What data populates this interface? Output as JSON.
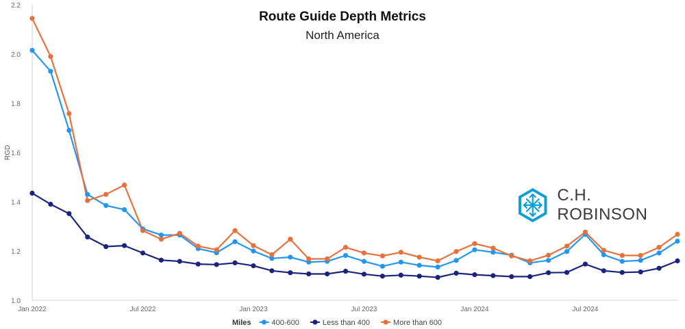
{
  "title": "Route Guide Depth Metrics",
  "subtitle": "North America",
  "brand": {
    "name": "C.H. ROBINSON",
    "icon": "ch-robinson-logo-icon",
    "color": "#0aa0d6"
  },
  "chart_data": {
    "type": "line",
    "ylabel": "RGD",
    "xlabel": "",
    "ylim": [
      1.0,
      2.2
    ],
    "yticks": [
      1.0,
      1.2,
      1.4,
      1.6,
      1.8,
      2.0,
      2.2
    ],
    "x": [
      "2022-01",
      "2022-02",
      "2022-03",
      "2022-04",
      "2022-05",
      "2022-06",
      "2022-07",
      "2022-08",
      "2022-09",
      "2022-10",
      "2022-11",
      "2022-12",
      "2023-01",
      "2023-02",
      "2023-03",
      "2023-04",
      "2023-05",
      "2023-06",
      "2023-07",
      "2023-08",
      "2023-09",
      "2023-10",
      "2023-11",
      "2023-12",
      "2024-01",
      "2024-02",
      "2024-03",
      "2024-04",
      "2024-05",
      "2024-06",
      "2024-07",
      "2024-08",
      "2024-09",
      "2024-10",
      "2024-11",
      "2024-12"
    ],
    "xticks": [
      {
        "x": "2022-01",
        "label": "Jan 2022"
      },
      {
        "x": "2022-07",
        "label": "Jul 2022"
      },
      {
        "x": "2023-01",
        "label": "Jan 2023"
      },
      {
        "x": "2023-07",
        "label": "Jul 2023"
      },
      {
        "x": "2024-01",
        "label": "Jan 2024"
      },
      {
        "x": "2024-07",
        "label": "Jul 2024"
      }
    ],
    "grid": false,
    "legend": {
      "title": "Miles",
      "placement": "bottom"
    },
    "series": [
      {
        "name": "400-600",
        "color": "#2196f3",
        "values": [
          2.015,
          1.93,
          1.69,
          1.43,
          1.385,
          1.368,
          1.29,
          1.265,
          1.265,
          1.21,
          1.193,
          1.238,
          1.2,
          1.17,
          1.175,
          1.155,
          1.158,
          1.182,
          1.158,
          1.138,
          1.155,
          1.142,
          1.135,
          1.162,
          1.205,
          1.195,
          1.183,
          1.152,
          1.162,
          1.198,
          1.268,
          1.185,
          1.158,
          1.162,
          1.192,
          1.24
        ]
      },
      {
        "name": "Less than 400",
        "color": "#1a237e",
        "values": [
          1.435,
          1.39,
          1.352,
          1.257,
          1.218,
          1.222,
          1.192,
          1.163,
          1.158,
          1.147,
          1.145,
          1.152,
          1.14,
          1.12,
          1.112,
          1.107,
          1.107,
          1.118,
          1.106,
          1.098,
          1.102,
          1.098,
          1.093,
          1.11,
          1.104,
          1.1,
          1.096,
          1.096,
          1.112,
          1.113,
          1.147,
          1.12,
          1.113,
          1.115,
          1.13,
          1.16
        ]
      },
      {
        "name": "More than 600",
        "color": "#e8703a",
        "values": [
          2.145,
          1.99,
          1.758,
          1.405,
          1.43,
          1.468,
          1.283,
          1.248,
          1.272,
          1.22,
          1.205,
          1.283,
          1.222,
          1.185,
          1.248,
          1.168,
          1.168,
          1.215,
          1.192,
          1.18,
          1.195,
          1.175,
          1.16,
          1.198,
          1.23,
          1.212,
          1.18,
          1.16,
          1.183,
          1.22,
          1.277,
          1.203,
          1.182,
          1.182,
          1.215,
          1.268
        ]
      }
    ]
  }
}
